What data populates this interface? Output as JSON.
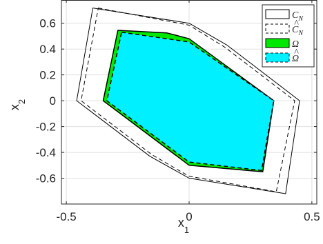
{
  "chart_data": {
    "type": "area",
    "xlabel": "x",
    "xlabel_sub": "1",
    "ylabel": "x",
    "ylabel_sub": "2",
    "xlim": [
      -0.52,
      0.52
    ],
    "ylim": [
      -0.8,
      0.78
    ],
    "xticks": [
      -0.5,
      0,
      0.5
    ],
    "xtick_labels": [
      "-0.5",
      "0",
      "0.5"
    ],
    "yticks": [
      -0.6,
      -0.4,
      -0.2,
      0,
      0.2,
      0.4,
      0.6
    ],
    "ytick_labels": [
      "-0.6",
      "-0.4",
      "-0.2",
      "0",
      "0.2",
      "0.4",
      "0.6"
    ],
    "grid": true,
    "legend_position": "top-right",
    "series": [
      {
        "name": "C_N",
        "label_main": "C",
        "label_sub": "N",
        "style": "solid",
        "fill": "none",
        "stroke": "#000000",
        "points": [
          [
            -0.392,
            0.718
          ],
          [
            0.0,
            0.6
          ],
          [
            0.155,
            0.43
          ],
          [
            0.45,
            0.0
          ],
          [
            0.393,
            -0.72
          ],
          [
            0.0,
            -0.6
          ],
          [
            -0.16,
            -0.43
          ],
          [
            -0.458,
            0.0
          ]
        ]
      },
      {
        "name": "C_N hat",
        "label_main": "C",
        "label_sub": "N",
        "style": "dashed",
        "fill": "none",
        "stroke": "#000000",
        "points": [
          [
            -0.37,
            0.718
          ],
          [
            0.0,
            0.585
          ],
          [
            0.145,
            0.415
          ],
          [
            0.43,
            0.0
          ],
          [
            0.355,
            -0.705
          ],
          [
            0.0,
            -0.585
          ],
          [
            -0.15,
            -0.42
          ],
          [
            -0.44,
            0.0
          ]
        ]
      },
      {
        "name": "Omega",
        "label_main": "Ω",
        "style": "solid",
        "fill": "#00e800",
        "stroke": "#000000",
        "points": [
          [
            -0.29,
            0.545
          ],
          [
            -0.09,
            0.525
          ],
          [
            0.0,
            0.48
          ],
          [
            0.345,
            0.0
          ],
          [
            0.3,
            -0.55
          ],
          [
            0.0,
            -0.5
          ],
          [
            -0.35,
            0.0
          ]
        ]
      },
      {
        "name": "Omega hat",
        "label_main": "Ω",
        "style": "dashed",
        "fill": "#00f0ff",
        "stroke": "#000000",
        "points": [
          [
            -0.275,
            0.53
          ],
          [
            0.0,
            0.455
          ],
          [
            0.345,
            0.0
          ],
          [
            0.295,
            -0.54
          ],
          [
            0.0,
            -0.475
          ],
          [
            -0.335,
            0.0
          ]
        ]
      }
    ],
    "colors": {
      "axes": "#262626",
      "grid": "#e0e0e0",
      "omega_fill": "#00e800",
      "omega_hat_fill": "#00f0ff"
    }
  }
}
